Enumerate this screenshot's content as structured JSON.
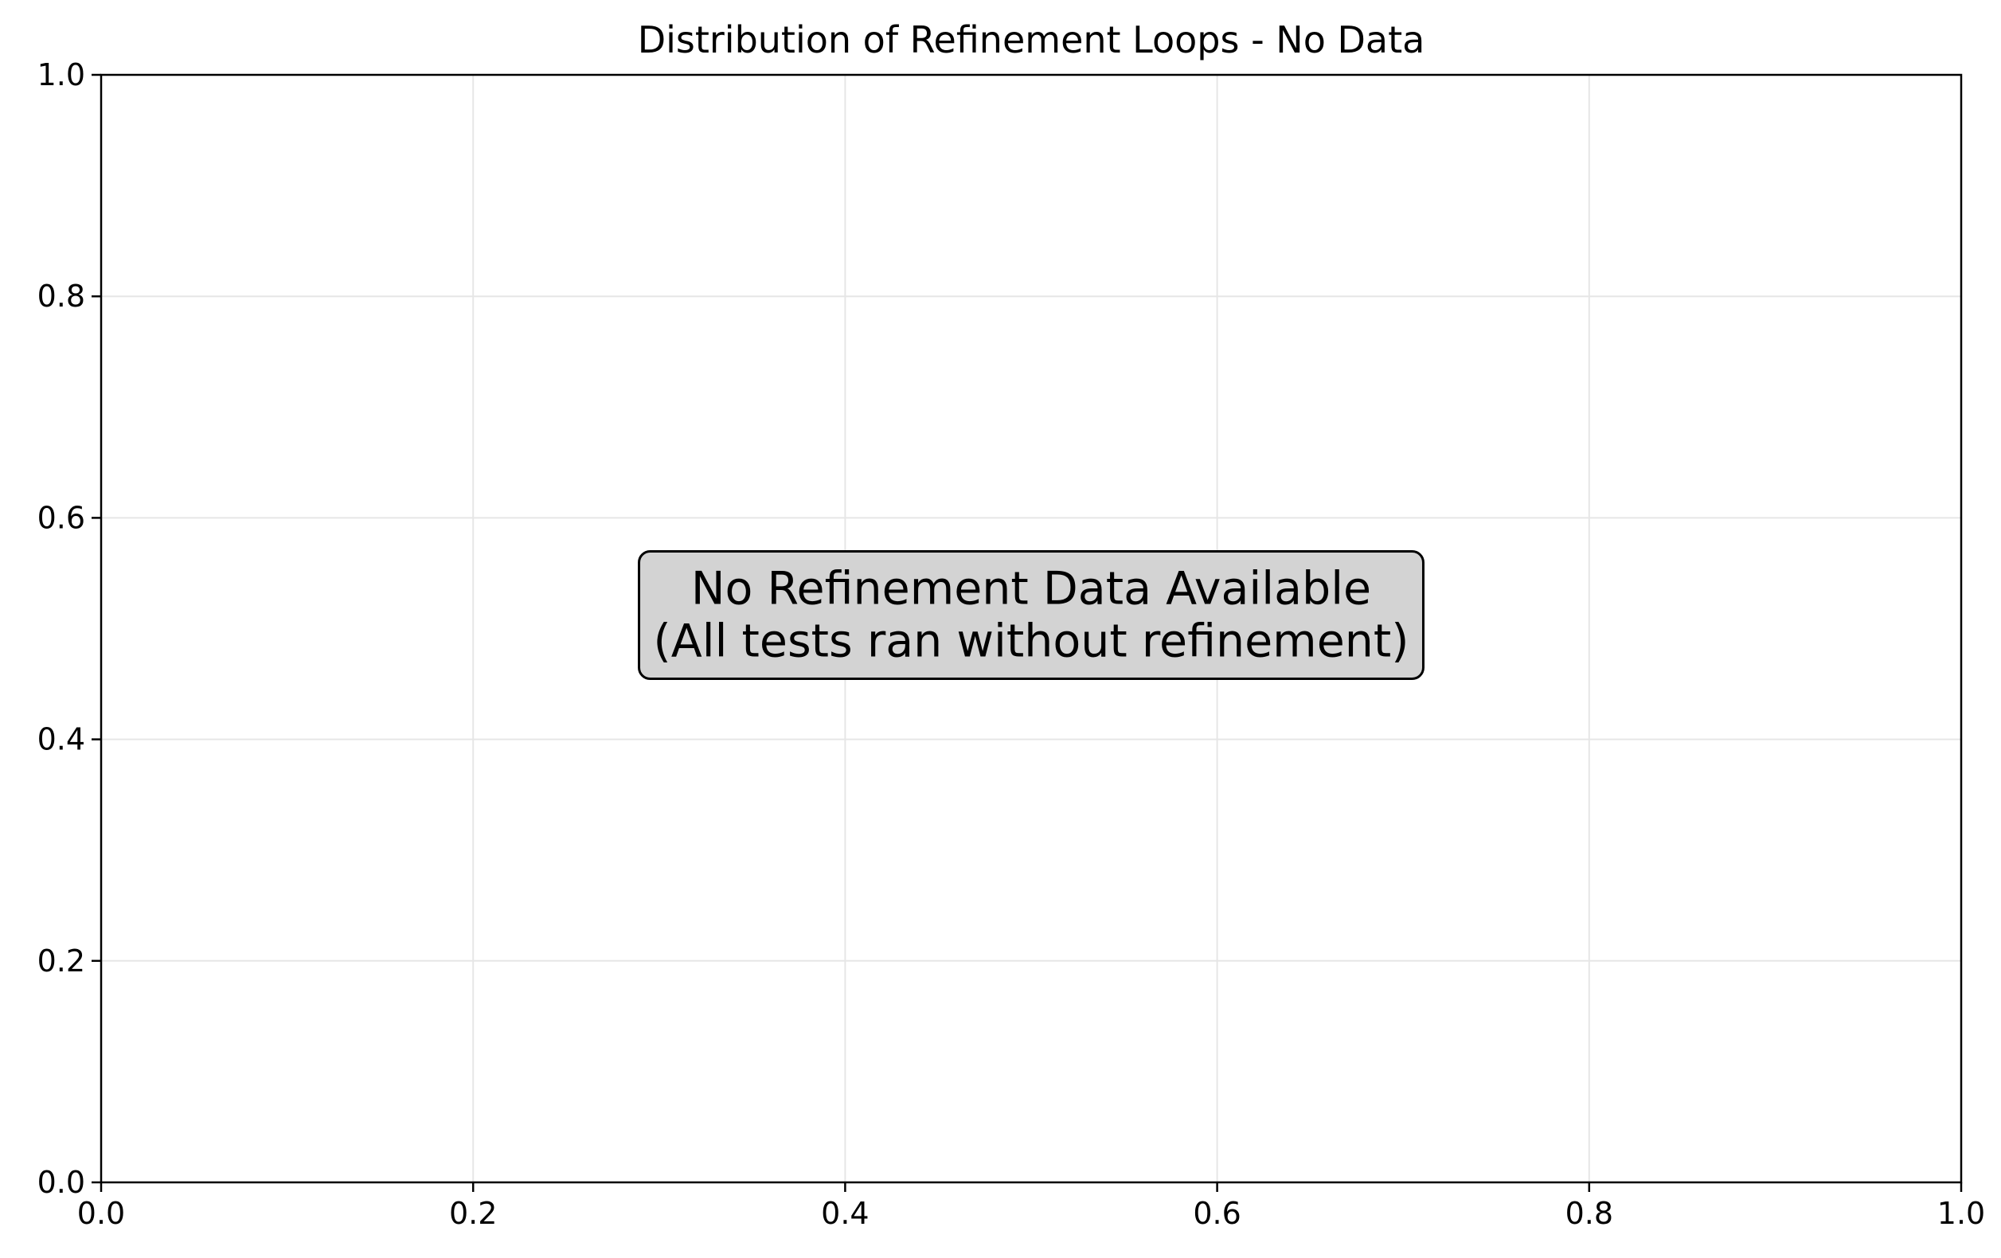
{
  "chart_data": {
    "type": "bar",
    "title": "Distribution of Refinement Loops - No Data",
    "xlabel": "",
    "ylabel": "",
    "categories": [],
    "values": [],
    "xlim": [
      0.0,
      1.0
    ],
    "ylim": [
      0.0,
      1.0
    ],
    "x_ticks": [
      "0.0",
      "0.2",
      "0.4",
      "0.6",
      "0.8",
      "1.0"
    ],
    "y_ticks": [
      "0.0",
      "0.2",
      "0.4",
      "0.6",
      "0.8",
      "1.0"
    ],
    "grid": true,
    "legend": "none",
    "annotation": {
      "lines": [
        "No Refinement Data Available",
        "(All tests ran without refinement)"
      ],
      "x": 0.5,
      "y": 0.5
    },
    "colors": {
      "annotation_box_fill": "#d3d3d3",
      "grid": "#e6e6e6",
      "axes": "#000000"
    }
  }
}
